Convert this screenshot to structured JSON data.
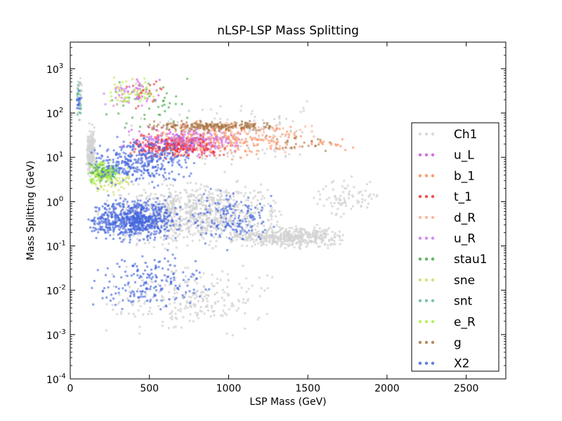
{
  "chart_data": {
    "type": "scatter",
    "title": "nLSP-LSP Mass Splitting",
    "xlabel": "LSP Mass (GeV)",
    "ylabel": "Mass Splitting (GeV)",
    "xlim": [
      0,
      2750
    ],
    "ylim_log10": [
      -4,
      3.6
    ],
    "yscale": "log",
    "grid": false,
    "legend_position": "right",
    "x_ticks": [
      {
        "value": 0,
        "label": "0"
      },
      {
        "value": 500,
        "label": "500"
      },
      {
        "value": 1000,
        "label": "1000"
      },
      {
        "value": 1500,
        "label": "1500"
      },
      {
        "value": 2000,
        "label": "2000"
      },
      {
        "value": 2500,
        "label": "2500"
      }
    ],
    "y_ticks": [
      {
        "exp": -4,
        "base": "10",
        "sup": "-4"
      },
      {
        "exp": -3,
        "base": "10",
        "sup": "-3"
      },
      {
        "exp": -2,
        "base": "10",
        "sup": "-2"
      },
      {
        "exp": -1,
        "base": "10",
        "sup": "-1"
      },
      {
        "exp": 0,
        "base": "10",
        "sup": "0"
      },
      {
        "exp": 1,
        "base": "10",
        "sup": "1"
      },
      {
        "exp": 2,
        "base": "10",
        "sup": "2"
      },
      {
        "exp": 3,
        "base": "10",
        "sup": "3"
      }
    ],
    "series": [
      {
        "name": "Ch1",
        "color": "#d3d3d3",
        "clusters": [
          {
            "x": [
              100,
              160
            ],
            "log10y": [
              0.4,
              1.8
            ],
            "n": 220
          },
          {
            "x": [
              150,
              1400
            ],
            "log10y": [
              -1.2,
              0.6
            ],
            "n": 900
          },
          {
            "x": [
              1000,
              1750
            ],
            "log10y": [
              -1.1,
              -0.5
            ],
            "n": 450
          },
          {
            "x": [
              200,
              1300
            ],
            "log10y": [
              -3.2,
              -1.2
            ],
            "n": 260
          },
          {
            "x": [
              300,
              1600
            ],
            "log10y": [
              0.6,
              2.4
            ],
            "n": 180
          },
          {
            "x": [
              1500,
              2000
            ],
            "log10y": [
              -0.4,
              0.6
            ],
            "n": 80
          },
          {
            "x": [
              40,
              80
            ],
            "log10y": [
              1.8,
              3.0
            ],
            "n": 20
          }
        ]
      },
      {
        "name": "u_L",
        "color": "#cc55dd",
        "clusters": [
          {
            "x": [
              300,
              1100
            ],
            "log10y": [
              1.0,
              1.8
            ],
            "n": 160
          },
          {
            "x": [
              250,
              600
            ],
            "log10y": [
              2.0,
              2.9
            ],
            "n": 30
          }
        ]
      },
      {
        "name": "b_1",
        "color": "#ff8855",
        "clusters": [
          {
            "x": [
              500,
              1500
            ],
            "log10y": [
              0.9,
              1.9
            ],
            "n": 160
          },
          {
            "x": [
              1400,
              1850
            ],
            "log10y": [
              1.0,
              1.6
            ],
            "n": 15
          }
        ]
      },
      {
        "name": "t_1",
        "color": "#ee3333",
        "clusters": [
          {
            "x": [
              350,
              1000
            ],
            "log10y": [
              0.9,
              1.6
            ],
            "n": 280
          },
          {
            "x": [
              300,
              600
            ],
            "log10y": [
              2.0,
              2.8
            ],
            "n": 20
          }
        ]
      },
      {
        "name": "d_R",
        "color": "#ffaa88",
        "clusters": [
          {
            "x": [
              500,
              1600
            ],
            "log10y": [
              1.0,
              1.9
            ],
            "n": 120
          }
        ]
      },
      {
        "name": "u_R",
        "color": "#cc77ee",
        "clusters": [
          {
            "x": [
              400,
              1100
            ],
            "log10y": [
              1.0,
              1.7
            ],
            "n": 100
          },
          {
            "x": [
              200,
              500
            ],
            "log10y": [
              2.0,
              2.9
            ],
            "n": 25
          }
        ]
      },
      {
        "name": "stau1",
        "color": "#44aa44",
        "clusters": [
          {
            "x": [
              110,
              320
            ],
            "log10y": [
              0.3,
              1.0
            ],
            "n": 90
          },
          {
            "x": [
              200,
              800
            ],
            "log10y": [
              1.5,
              2.9
            ],
            "n": 40
          }
        ]
      },
      {
        "name": "sne",
        "color": "#ccdd66",
        "clusters": [
          {
            "x": [
              120,
              400
            ],
            "log10y": [
              0.1,
              0.9
            ],
            "n": 70
          },
          {
            "x": [
              200,
              600
            ],
            "log10y": [
              2.0,
              3.0
            ],
            "n": 40
          }
        ]
      },
      {
        "name": "snt",
        "color": "#66bb99",
        "clusters": [
          {
            "x": [
              40,
              70
            ],
            "log10y": [
              1.7,
              2.8
            ],
            "n": 25
          },
          {
            "x": [
              150,
              350
            ],
            "log10y": [
              0.4,
              0.9
            ],
            "n": 20
          }
        ]
      },
      {
        "name": "e_R",
        "color": "#aaee44",
        "clusters": [
          {
            "x": [
              110,
              300
            ],
            "log10y": [
              0.3,
              1.0
            ],
            "n": 70
          },
          {
            "x": [
              200,
              500
            ],
            "log10y": [
              2.0,
              2.8
            ],
            "n": 20
          }
        ]
      },
      {
        "name": "g",
        "color": "#aa7744",
        "clusters": [
          {
            "x": [
              450,
              1350
            ],
            "log10y": [
              1.55,
              1.85
            ],
            "n": 220
          },
          {
            "x": [
              1100,
              1750
            ],
            "log10y": [
              1.0,
              1.6
            ],
            "n": 25
          }
        ]
      },
      {
        "name": "X2",
        "color": "#4466dd",
        "clusters": [
          {
            "x": [
              110,
              700
            ],
            "log10y": [
              -1.0,
              0.2
            ],
            "n": 700
          },
          {
            "x": [
              120,
              800
            ],
            "log10y": [
              0.2,
              1.6
            ],
            "n": 350
          },
          {
            "x": [
              110,
              900
            ],
            "log10y": [
              -2.6,
              -1.0
            ],
            "n": 180
          },
          {
            "x": [
              700,
              1300
            ],
            "log10y": [
              -1.2,
              0.4
            ],
            "n": 160
          },
          {
            "x": [
              40,
              70
            ],
            "log10y": [
              1.8,
              2.7
            ],
            "n": 15
          }
        ]
      }
    ]
  }
}
